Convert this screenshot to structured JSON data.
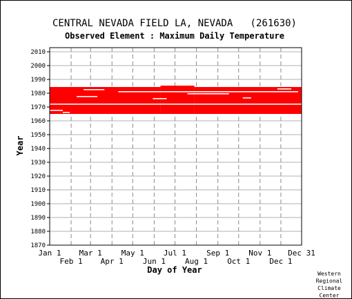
{
  "chart_data": {
    "type": "heatmap",
    "title": "CENTRAL NEVADA FIELD LA, NEVADA   (261630)",
    "subtitle": "Observed Element : Maximum Daily Temperature",
    "xlabel": "Day of Year",
    "ylabel": "Year",
    "ylim": [
      1870,
      2010
    ],
    "yticks": [
      1870,
      1880,
      1890,
      1900,
      1910,
      1920,
      1930,
      1940,
      1950,
      1960,
      1970,
      1980,
      1990,
      2000,
      2010
    ],
    "x_ticks_upper": [
      {
        "label": "Jan 1",
        "day": 1
      },
      {
        "label": "Mar 1",
        "day": 60
      },
      {
        "label": "May 1",
        "day": 121
      },
      {
        "label": "Jul 1",
        "day": 182
      },
      {
        "label": "Sep 1",
        "day": 244
      },
      {
        "label": "Nov 1",
        "day": 305
      },
      {
        "label": "Dec 31",
        "day": 365
      }
    ],
    "x_ticks_lower": [
      {
        "label": "Feb 1",
        "day": 32
      },
      {
        "label": "Apr 1",
        "day": 91
      },
      {
        "label": "Jun 1",
        "day": 152
      },
      {
        "label": "Aug 1",
        "day": 213
      },
      {
        "label": "Oct 1",
        "day": 274
      },
      {
        "label": "Dec 1",
        "day": 335
      }
    ],
    "xlim": [
      1,
      365
    ],
    "grid": true,
    "data_color": "#ff0000",
    "record_periods": [
      {
        "start_year": 1965.0,
        "end_year": 1984.5,
        "day_start": 1,
        "day_end": 161
      },
      {
        "start_year": 1965.0,
        "end_year": 1985.5,
        "day_start": 161,
        "day_end": 210
      },
      {
        "start_year": 1965.0,
        "end_year": 1984.5,
        "day_start": 210,
        "day_end": 365
      }
    ],
    "missing_data": [
      {
        "year": 1981,
        "day_start": 100,
        "day_end": 360
      },
      {
        "year": 1977.5,
        "day_start": 40,
        "day_end": 70
      },
      {
        "year": 1976,
        "day_start": 150,
        "day_end": 170
      },
      {
        "year": 1976.5,
        "day_start": 280,
        "day_end": 292
      },
      {
        "year": 1972,
        "day_start": 1,
        "day_end": 365
      },
      {
        "year": 1966,
        "day_start": 20,
        "day_end": 30
      },
      {
        "year": 1967.5,
        "day_start": 1,
        "day_end": 20
      },
      {
        "year": 1983,
        "day_start": 330,
        "day_end": 350
      },
      {
        "year": 1979.5,
        "day_start": 200,
        "day_end": 260
      },
      {
        "year": 1982.5,
        "day_start": 50,
        "day_end": 80
      }
    ]
  },
  "credit": [
    "Western",
    "Regional",
    "Climate",
    "Center"
  ]
}
